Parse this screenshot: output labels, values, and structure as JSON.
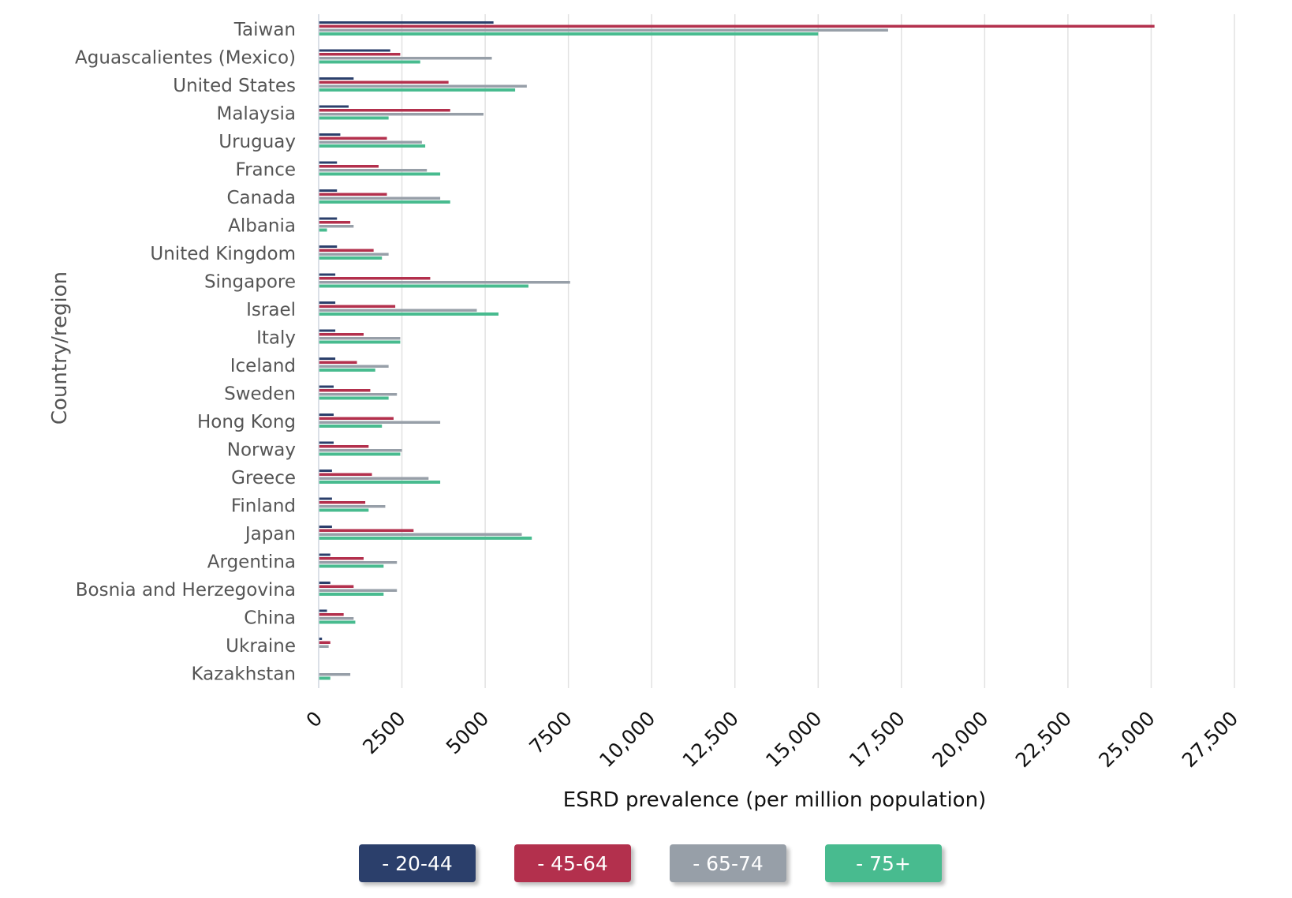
{
  "chart_data": {
    "type": "bar",
    "orientation": "horizontal",
    "xlabel": "ESRD prevalence (per million population)",
    "ylabel": "Country/region",
    "xlim": [
      0,
      27500
    ],
    "xticks": [
      0,
      2500,
      5000,
      7500,
      10000,
      12500,
      15000,
      17500,
      20000,
      22500,
      25000,
      27500
    ],
    "xtick_labels": [
      "0",
      "2500",
      "5000",
      "7500",
      "10,000",
      "12,500",
      "15,000",
      "17,500",
      "20,000",
      "22,500",
      "25,000",
      "27,500"
    ],
    "grid": "vertical",
    "legend_position": "bottom",
    "categories": [
      "Taiwan",
      "Aguascalientes (Mexico)",
      "United States",
      "Malaysia",
      "Uruguay",
      "France",
      "Canada",
      "Albania",
      "United Kingdom",
      "Singapore",
      "Israel",
      "Italy",
      "Iceland",
      "Sweden",
      "Hong Kong",
      "Norway",
      "Greece",
      "Finland",
      "Japan",
      "Argentina",
      "Bosnia and Herzegovina",
      "China",
      "Ukraine",
      "Kazakhstan"
    ],
    "series": [
      {
        "name": "20-44",
        "color": "#2b3f6b",
        "values": [
          5250,
          2150,
          1050,
          900,
          650,
          550,
          550,
          550,
          550,
          500,
          500,
          500,
          500,
          450,
          450,
          450,
          400,
          400,
          400,
          350,
          350,
          250,
          100,
          0
        ]
      },
      {
        "name": "45-64",
        "color": "#b3304d",
        "values": [
          25100,
          2450,
          3900,
          3950,
          2050,
          1800,
          2050,
          950,
          1650,
          3350,
          2300,
          1350,
          1150,
          1550,
          2250,
          1500,
          1600,
          1400,
          2850,
          1350,
          1050,
          750,
          350,
          0
        ]
      },
      {
        "name": "65-74",
        "color": "#979fa8",
        "values": [
          17100,
          5200,
          6250,
          4950,
          3100,
          3250,
          3650,
          1050,
          2100,
          7550,
          4750,
          2450,
          2100,
          2350,
          3650,
          2500,
          3300,
          2000,
          6100,
          2350,
          2350,
          1050,
          300,
          950
        ]
      },
      {
        "name": "75+",
        "color": "#48bb8f",
        "values": [
          15000,
          3050,
          5900,
          2100,
          3200,
          3650,
          3950,
          250,
          1900,
          6300,
          5400,
          2450,
          1700,
          2100,
          1900,
          2450,
          3650,
          1500,
          6400,
          1950,
          1950,
          1100,
          0,
          350
        ]
      }
    ]
  },
  "legend": {
    "items": [
      {
        "label": "- 20-44",
        "color": "#2b3f6b"
      },
      {
        "label": "- 45-64",
        "color": "#b3304d"
      },
      {
        "label": "- 65-74",
        "color": "#979fa8"
      },
      {
        "label": "- 75+",
        "color": "#48bb8f"
      }
    ]
  }
}
